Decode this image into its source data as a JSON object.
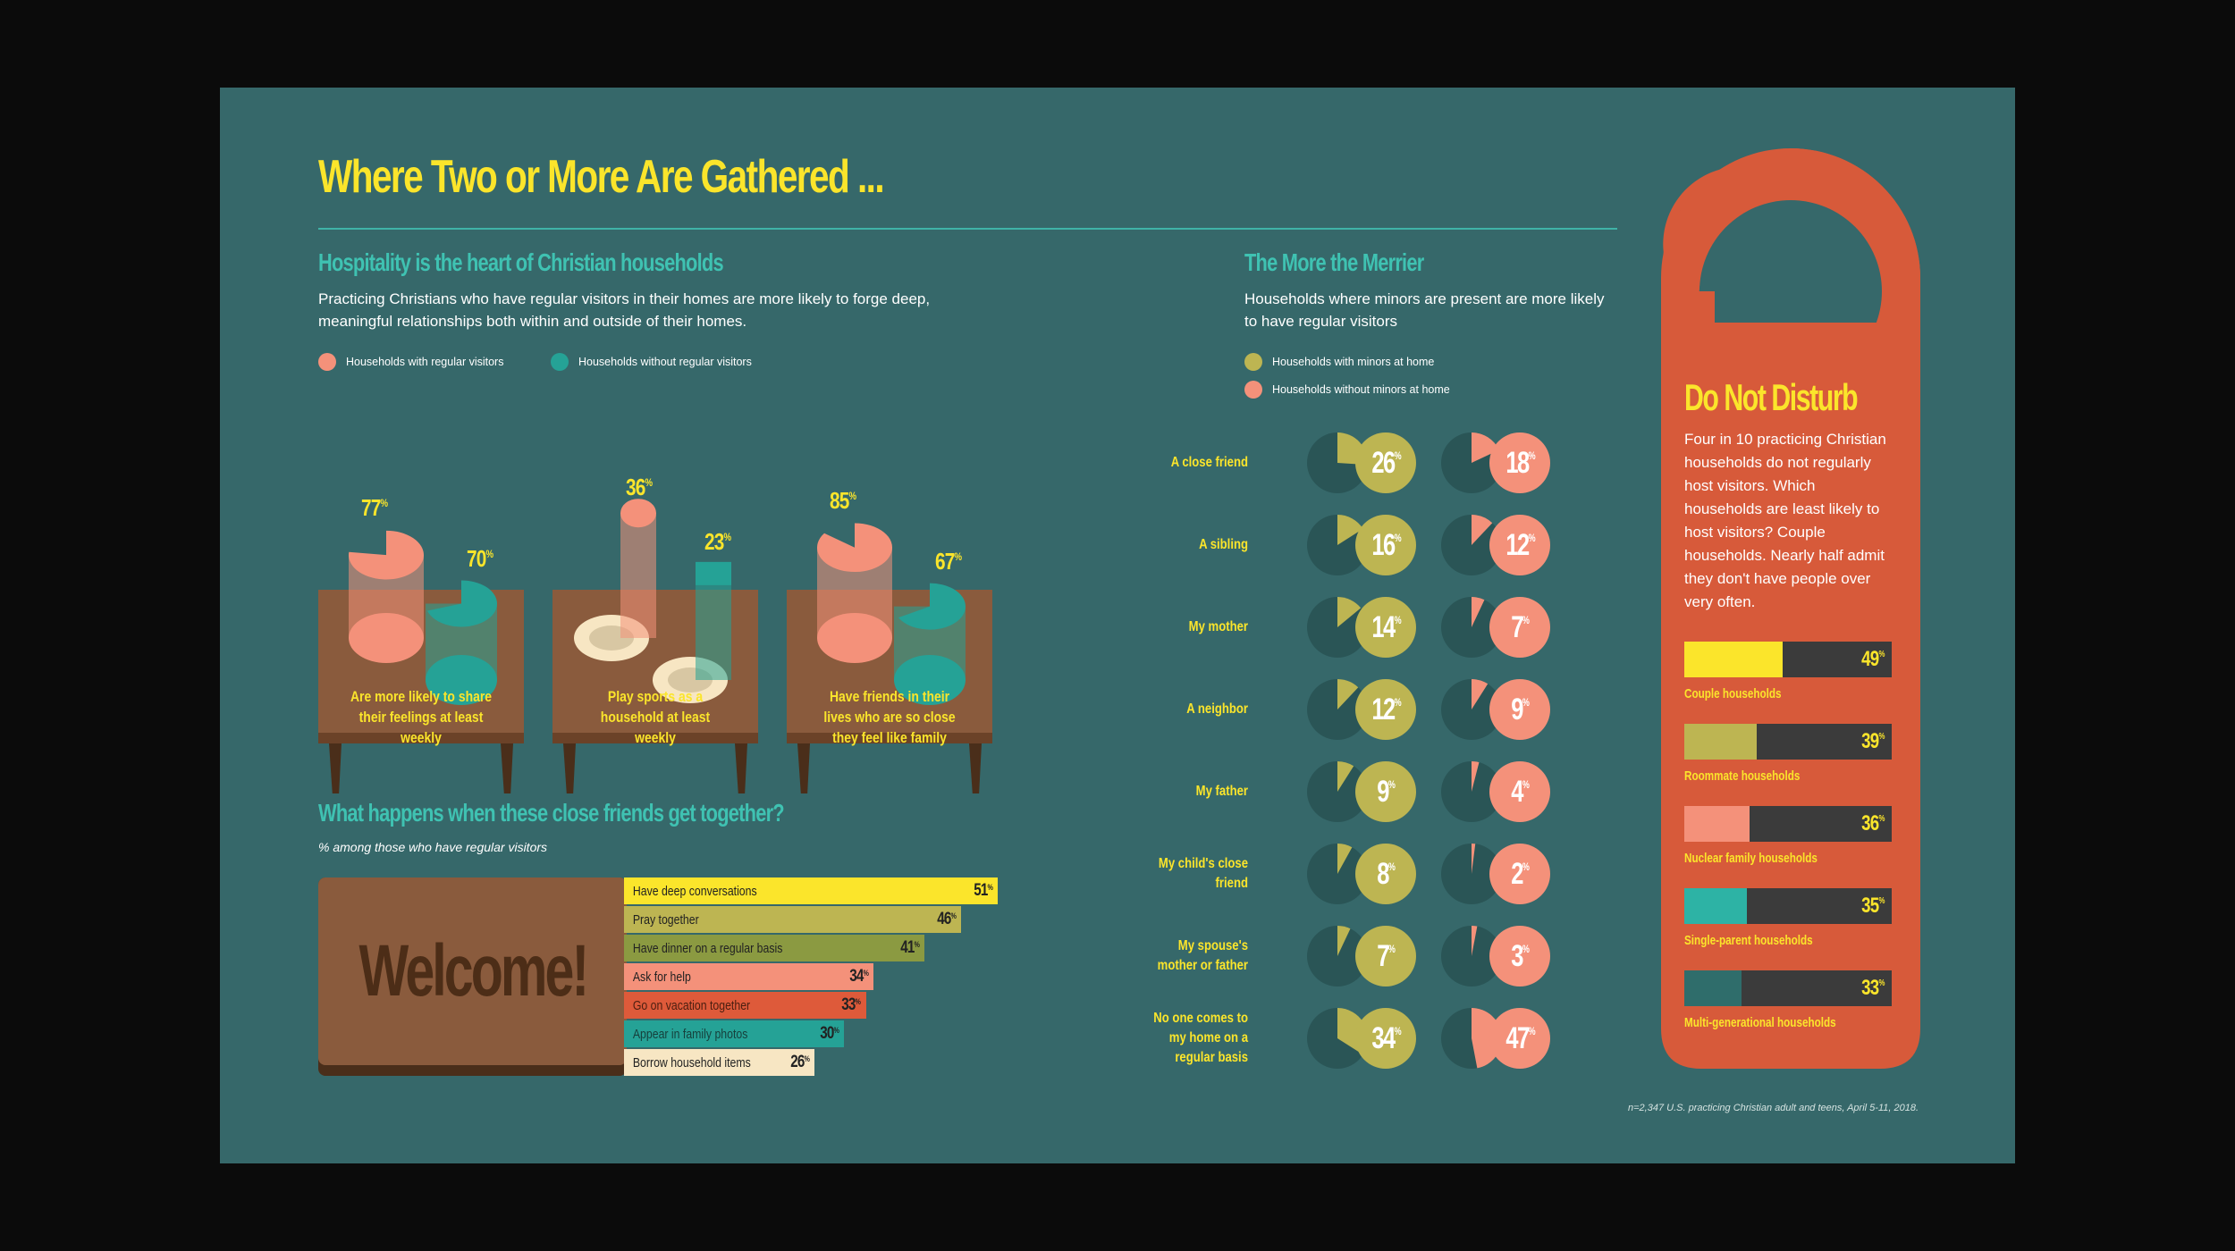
{
  "title": "Where Two or More Are Gathered ...",
  "hospitality": {
    "heading": "Hospitality is the heart of Christian households",
    "body": "Practicing Christians who have regular visitors in their homes are more likely to forge deep, meaningful relationships both within and outside of their homes.",
    "legend": [
      "Households with regular visitors",
      "Households without regular visitors"
    ],
    "colors": {
      "with": "#f4917a",
      "without": "#25a296"
    }
  },
  "activities": {
    "heading": "What happens when these close friends get together?",
    "subheading": "% among those who have regular visitors",
    "mat_text": "Welcome!",
    "colors": [
      "#fbe52b",
      "#bdb552",
      "#8b9a41",
      "#f4917a",
      "#de5a3a",
      "#25a296",
      "#f7e6c3"
    ]
  },
  "merrier": {
    "heading": "The More the Merrier",
    "body": "Households where minors are present are more likely to have regular visitors",
    "legend": [
      "Households with minors at home",
      "Households without minors at home"
    ],
    "colors": {
      "with": "#bdb552",
      "without": "#f4917a"
    }
  },
  "dnd": {
    "title": "Do Not Disturb",
    "body": "Four in 10 practicing Christian households do not regularly host visitors. Which households are least likely to host visitors? Couple households. Nearly half admit they don't have people over very often.",
    "colors": [
      "#fbe52b",
      "#bdb552",
      "#f4917a",
      "#2db3a5",
      "#2f6d6b"
    ]
  },
  "footnote": "n=2,347 U.S. practicing Christian adult and teens, April 5-11, 2018.",
  "chart_data": [
    {
      "type": "bar",
      "title": "Hospitality is the heart of Christian households",
      "categories": [
        "Are more likely to share their feelings at least weekly",
        "Play sports as a household at least weekly",
        "Have friends in their lives who are so close they feel like family"
      ],
      "series": [
        {
          "name": "Households with regular visitors",
          "values": [
            77,
            36,
            85
          ]
        },
        {
          "name": "Households without regular visitors",
          "values": [
            70,
            23,
            67
          ]
        }
      ],
      "unit": "%"
    },
    {
      "type": "bar",
      "title": "What happens when these close friends get together?",
      "subtitle": "% among those who have regular visitors",
      "categories": [
        "Have deep conversations",
        "Pray together",
        "Have dinner on a regular basis",
        "Ask for help",
        "Go on vacation together",
        "Appear in family photos",
        "Borrow household items"
      ],
      "values": [
        51,
        46,
        41,
        34,
        33,
        30,
        26
      ],
      "unit": "%"
    },
    {
      "type": "pie",
      "title": "The More the Merrier",
      "categories": [
        "A close friend",
        "A sibling",
        "My mother",
        "A neighbor",
        "My father",
        "My child's close friend",
        "My spouse's mother or father",
        "No one comes to my home on a regular basis"
      ],
      "series": [
        {
          "name": "Households with minors at home",
          "values": [
            26,
            16,
            14,
            12,
            9,
            8,
            7,
            34
          ]
        },
        {
          "name": "Households without minors at home",
          "values": [
            18,
            12,
            7,
            9,
            4,
            2,
            3,
            47
          ]
        }
      ],
      "unit": "%"
    },
    {
      "type": "bar",
      "title": "Do Not Disturb",
      "categories": [
        "Couple households",
        "Roommate households",
        "Nuclear family households",
        "Single-parent households",
        "Multi-generational households"
      ],
      "values": [
        49,
        39,
        36,
        35,
        33
      ],
      "unit": "%"
    }
  ]
}
